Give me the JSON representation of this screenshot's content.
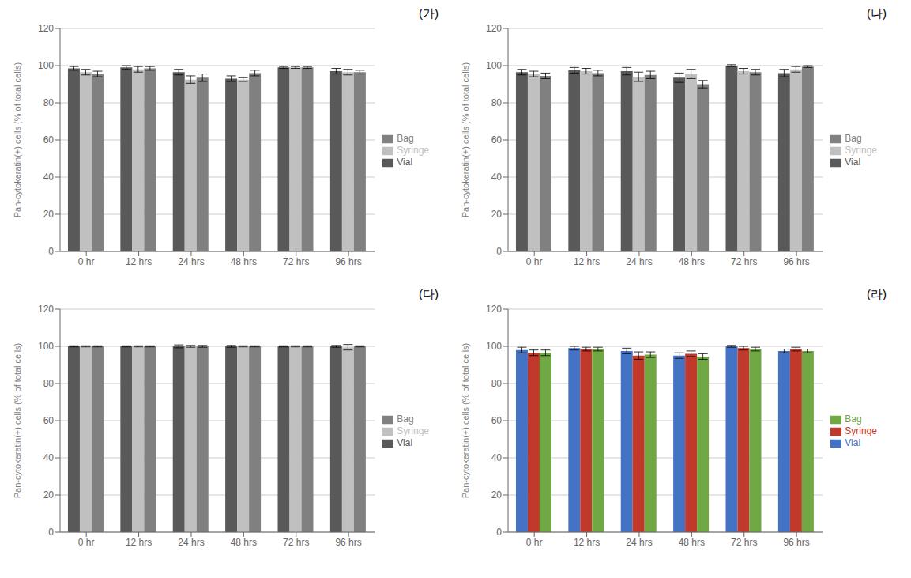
{
  "chart_data": [
    {
      "type": "bar",
      "title": "(가)",
      "categories": [
        "0 hr",
        "12 hrs",
        "24 hrs",
        "48 hrs",
        "72 hrs",
        "96 hrs"
      ],
      "series": [
        {
          "name": "Vial",
          "color": "#595959",
          "values": [
            98.5,
            99.0,
            96.5,
            93.0,
            99.0,
            97.0
          ],
          "errors": [
            1.0,
            1.0,
            1.5,
            1.5,
            0.5,
            1.5
          ]
        },
        {
          "name": "Syringe",
          "color": "#c0c0c0",
          "values": [
            96.5,
            98.0,
            92.5,
            92.5,
            99.0,
            96.5
          ],
          "errors": [
            1.5,
            1.5,
            2.0,
            1.0,
            0.5,
            1.5
          ]
        },
        {
          "name": "Bag",
          "color": "#808080",
          "values": [
            95.5,
            98.5,
            93.5,
            96.0,
            99.0,
            96.5
          ],
          "errors": [
            1.5,
            1.0,
            2.0,
            1.5,
            0.5,
            1.0
          ]
        }
      ],
      "ylabel": "Pan-cytokeratin(+) cells (% of total cells)",
      "ylim": [
        0,
        120
      ],
      "yticks": [
        0,
        20,
        40,
        60,
        80,
        100,
        120
      ],
      "grid": true,
      "legend": "right"
    },
    {
      "type": "bar",
      "title": "(나)",
      "categories": [
        "0 hr",
        "12 hrs",
        "24 hrs",
        "48 hrs",
        "72 hrs",
        "96 hrs"
      ],
      "series": [
        {
          "name": "Vial",
          "color": "#595959",
          "values": [
            96.5,
            97.5,
            97.0,
            93.5,
            100.0,
            96.0
          ],
          "errors": [
            1.5,
            1.5,
            2.0,
            2.5,
            0.5,
            2.0
          ]
        },
        {
          "name": "Syringe",
          "color": "#c0c0c0",
          "values": [
            95.5,
            97.0,
            94.0,
            95.5,
            97.0,
            98.0
          ],
          "errors": [
            1.5,
            1.5,
            2.5,
            2.5,
            1.5,
            1.5
          ]
        },
        {
          "name": "Bag",
          "color": "#808080",
          "values": [
            94.5,
            96.0,
            95.0,
            90.0,
            96.5,
            99.5
          ],
          "errors": [
            1.5,
            1.5,
            2.0,
            2.0,
            1.5,
            0.5
          ]
        }
      ],
      "ylabel": "Pan-cytokeratin(+) cells (% of total cells)",
      "ylim": [
        0,
        120
      ],
      "yticks": [
        0,
        20,
        40,
        60,
        80,
        100,
        120
      ],
      "grid": true,
      "legend": "right"
    },
    {
      "type": "bar",
      "title": "(다)",
      "categories": [
        "0 hr",
        "12 hrs",
        "24 hrs",
        "48 hrs",
        "72 hrs",
        "96 hrs"
      ],
      "series": [
        {
          "name": "Vial",
          "color": "#595959",
          "values": [
            100.0,
            100.0,
            100.0,
            100.0,
            100.0,
            100.0
          ],
          "errors": [
            0.3,
            0.3,
            0.8,
            0.5,
            0.3,
            0.5
          ]
        },
        {
          "name": "Syringe",
          "color": "#c0c0c0",
          "values": [
            100.0,
            100.0,
            100.0,
            100.0,
            100.0,
            99.5
          ],
          "errors": [
            0.3,
            0.3,
            0.5,
            0.3,
            0.3,
            1.5
          ]
        },
        {
          "name": "Bag",
          "color": "#808080",
          "values": [
            100.0,
            100.0,
            100.0,
            100.0,
            100.0,
            100.0
          ],
          "errors": [
            0.3,
            0.3,
            0.5,
            0.3,
            0.3,
            0.3
          ]
        }
      ],
      "ylabel": "Pan-cytokeratin(+) cells (% of total cells)",
      "ylim": [
        0,
        120
      ],
      "yticks": [
        0,
        20,
        40,
        60,
        80,
        100,
        120
      ],
      "grid": true,
      "legend": "right"
    },
    {
      "type": "bar",
      "title": "(라)",
      "categories": [
        "0 hr",
        "12 hrs",
        "24 hrs",
        "48 hrs",
        "72 hrs",
        "96 hrs"
      ],
      "series": [
        {
          "name": "Vial",
          "color": "#4472c4",
          "values": [
            98.0,
            99.0,
            97.5,
            95.0,
            100.0,
            97.5
          ],
          "errors": [
            1.5,
            1.0,
            1.5,
            1.5,
            0.5,
            1.0
          ]
        },
        {
          "name": "Syringe",
          "color": "#c0392b",
          "values": [
            96.5,
            98.5,
            95.0,
            96.0,
            99.0,
            98.5
          ],
          "errors": [
            1.5,
            1.0,
            2.0,
            1.5,
            1.0,
            1.0
          ]
        },
        {
          "name": "Bag",
          "color": "#70a844",
          "values": [
            96.5,
            98.5,
            95.5,
            94.5,
            98.5,
            97.5
          ],
          "errors": [
            1.5,
            1.0,
            1.5,
            1.5,
            1.0,
            1.0
          ]
        }
      ],
      "ylabel": "Pan-cytokeratin(+) cells (% of total cells)",
      "ylim": [
        0,
        120
      ],
      "yticks": [
        0,
        20,
        40,
        60,
        80,
        100,
        120
      ],
      "grid": true,
      "legend": "right"
    }
  ]
}
